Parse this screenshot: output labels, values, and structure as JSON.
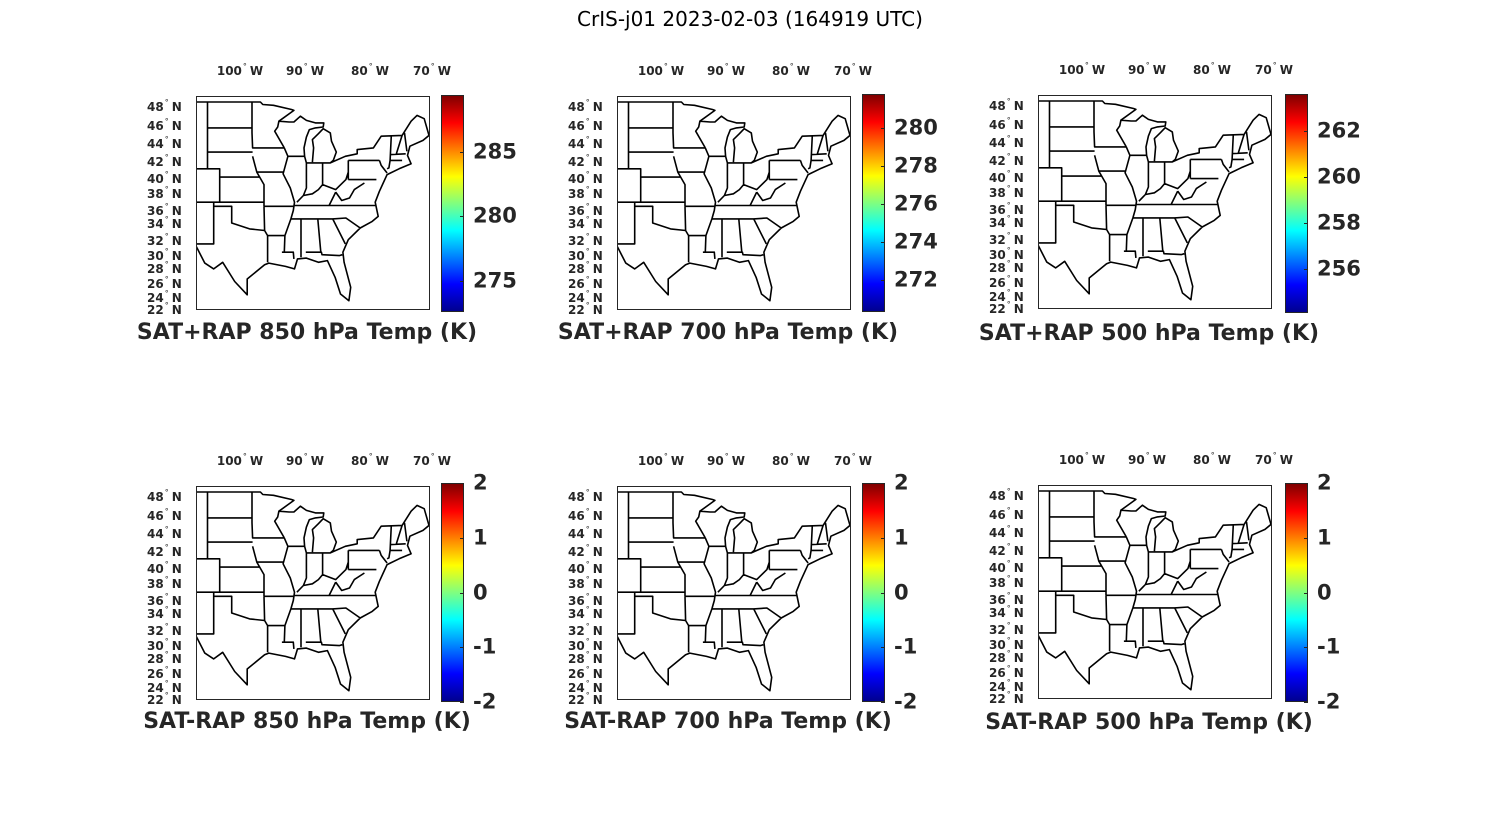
{
  "figure_title": "CrIS-j01 2023-02-03 (164919 UTC)",
  "lon_labels": [
    "100",
    "90",
    "80",
    "70"
  ],
  "lon_hemisphere": "W",
  "lat_labels": [
    "48",
    "46",
    "44",
    "42",
    "40",
    "38",
    "36",
    "34",
    "32",
    "30",
    "28",
    "26",
    "24",
    "22"
  ],
  "lat_hemisphere": "N",
  "degree_symbol": "°",
  "panels": [
    {
      "title": "SAT+RAP 850 hPa Temp (K)",
      "colormap": "jet",
      "clim": [
        272.6,
        289.4
      ],
      "colorbar_ticks": [
        "285",
        "280",
        "275"
      ],
      "tick_values": [
        285,
        280,
        275
      ]
    },
    {
      "title": "SAT+RAP 700 hPa Temp (K)",
      "colormap": "jet",
      "clim": [
        270.3,
        281.8
      ],
      "colorbar_ticks": [
        "280",
        "278",
        "276",
        "274",
        "272"
      ],
      "tick_values": [
        280,
        278,
        276,
        274,
        272
      ]
    },
    {
      "title": "SAT+RAP 500 hPa Temp (K)",
      "colormap": "jet",
      "clim": [
        254.1,
        263.6
      ],
      "colorbar_ticks": [
        "262",
        "260",
        "258",
        "256"
      ],
      "tick_values": [
        262,
        260,
        258,
        256
      ]
    },
    {
      "title": "SAT-RAP 850 hPa Temp (K)",
      "colormap": "jet",
      "clim": [
        -2,
        2
      ],
      "colorbar_ticks": [
        "2",
        "1",
        "0",
        "-1",
        "-2"
      ],
      "tick_values": [
        2,
        1,
        0,
        -1,
        -2
      ]
    },
    {
      "title": "SAT-RAP 700 hPa Temp (K)",
      "colormap": "jet",
      "clim": [
        -2,
        2
      ],
      "colorbar_ticks": [
        "2",
        "1",
        "0",
        "-1",
        "-2"
      ],
      "tick_values": [
        2,
        1,
        0,
        -1,
        -2
      ]
    },
    {
      "title": "SAT-RAP 500 hPa Temp (K)",
      "colormap": "jet",
      "clim": [
        -2,
        2
      ],
      "colorbar_ticks": [
        "2",
        "1",
        "0",
        "-1",
        "-2"
      ],
      "tick_values": [
        2,
        1,
        0,
        -1,
        -2
      ]
    }
  ]
}
